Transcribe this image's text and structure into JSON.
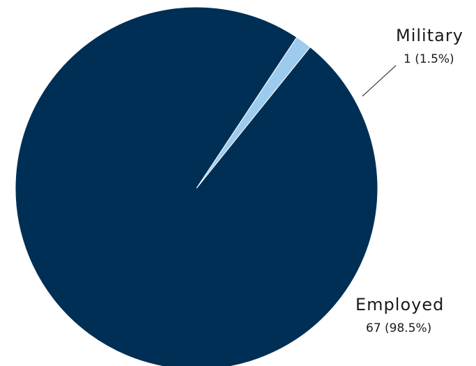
{
  "chart_data": {
    "type": "pie",
    "slices": [
      {
        "label": "Employed",
        "value": 67,
        "percent_label": "67 (98.5%)",
        "color": "#002f55"
      },
      {
        "label": "Military",
        "value": 1,
        "percent_label": "1 (1.5%)",
        "color": "#9ccbee"
      }
    ]
  }
}
